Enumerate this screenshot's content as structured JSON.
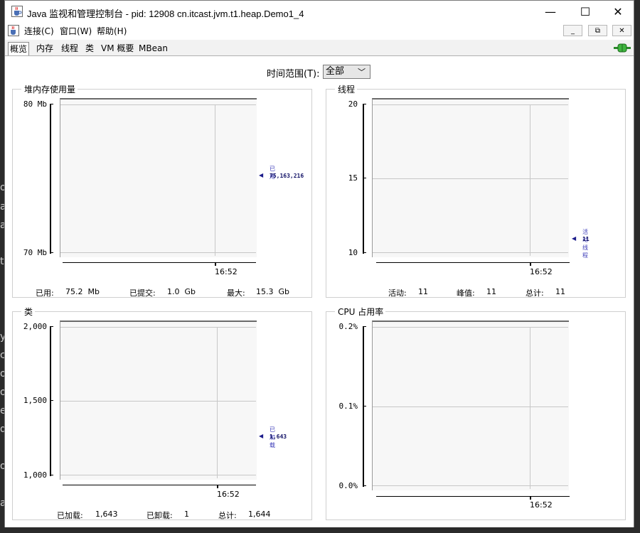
{
  "background": {
    "edge_letters": [
      "o",
      "a",
      "a",
      "t",
      "y",
      "c",
      "o",
      "o",
      "e",
      "d",
      "o",
      "a"
    ]
  },
  "window": {
    "title": "Java 监视和管理控制台 - pid: 12908 cn.itcast.jvm.t1.heap.Demo1_4",
    "controls": {
      "minimize": "—",
      "maximize": "☐",
      "close": "✕"
    }
  },
  "menubar": {
    "items": [
      "连接(C)",
      "窗口(W)",
      "帮助(H)"
    ],
    "inner_controls": [
      "_",
      "⧉",
      "✕"
    ]
  },
  "tabs": [
    "概览",
    "内存",
    "线程",
    "类",
    "VM 概要",
    "MBean"
  ],
  "selected_tab": "概览",
  "time_range": {
    "label": "时间范围(T):",
    "value": "全部"
  },
  "panels": {
    "heap": {
      "title": "堆内存使用量",
      "y_top": "80 Mb",
      "y_bottom": "70 Mb",
      "x_time": "16:52",
      "legend_name": "已用",
      "legend_value": "75,163,216",
      "footer": [
        {
          "label": "已用:",
          "value": "75.2  Mb"
        },
        {
          "label": "已提交:",
          "value": "1.0  Gb"
        },
        {
          "label": "最大:",
          "value": "15.3  Gb"
        }
      ]
    },
    "threads": {
      "title": "线程",
      "y_top": "20",
      "y_mid": "15",
      "y_bottom": "10",
      "x_time": "16:52",
      "legend_name": "活动线程",
      "legend_value": "11",
      "footer": [
        {
          "label": "活动:",
          "value": "11"
        },
        {
          "label": "峰值:",
          "value": "11"
        },
        {
          "label": "总计:",
          "value": "11"
        }
      ]
    },
    "classes": {
      "title": "类",
      "y_top": "2,000",
      "y_mid": "1,500",
      "y_bottom": "1,000",
      "x_time": "16:52",
      "legend_name": "已加载",
      "legend_value": "1,643",
      "footer": [
        {
          "label": "已加载:",
          "value": "1,643"
        },
        {
          "label": "已卸载:",
          "value": "1"
        },
        {
          "label": "总计:",
          "value": "1,644"
        }
      ]
    },
    "cpu": {
      "title": "CPU 占用率",
      "y_top": "0.2%",
      "y_mid": "0.1%",
      "y_bottom": "0.0%",
      "x_time": "16:52"
    }
  },
  "colors": {
    "legend": "#3b3bb8",
    "plot_bg": "#f7f7f7",
    "grid": "#c7c7c7"
  }
}
